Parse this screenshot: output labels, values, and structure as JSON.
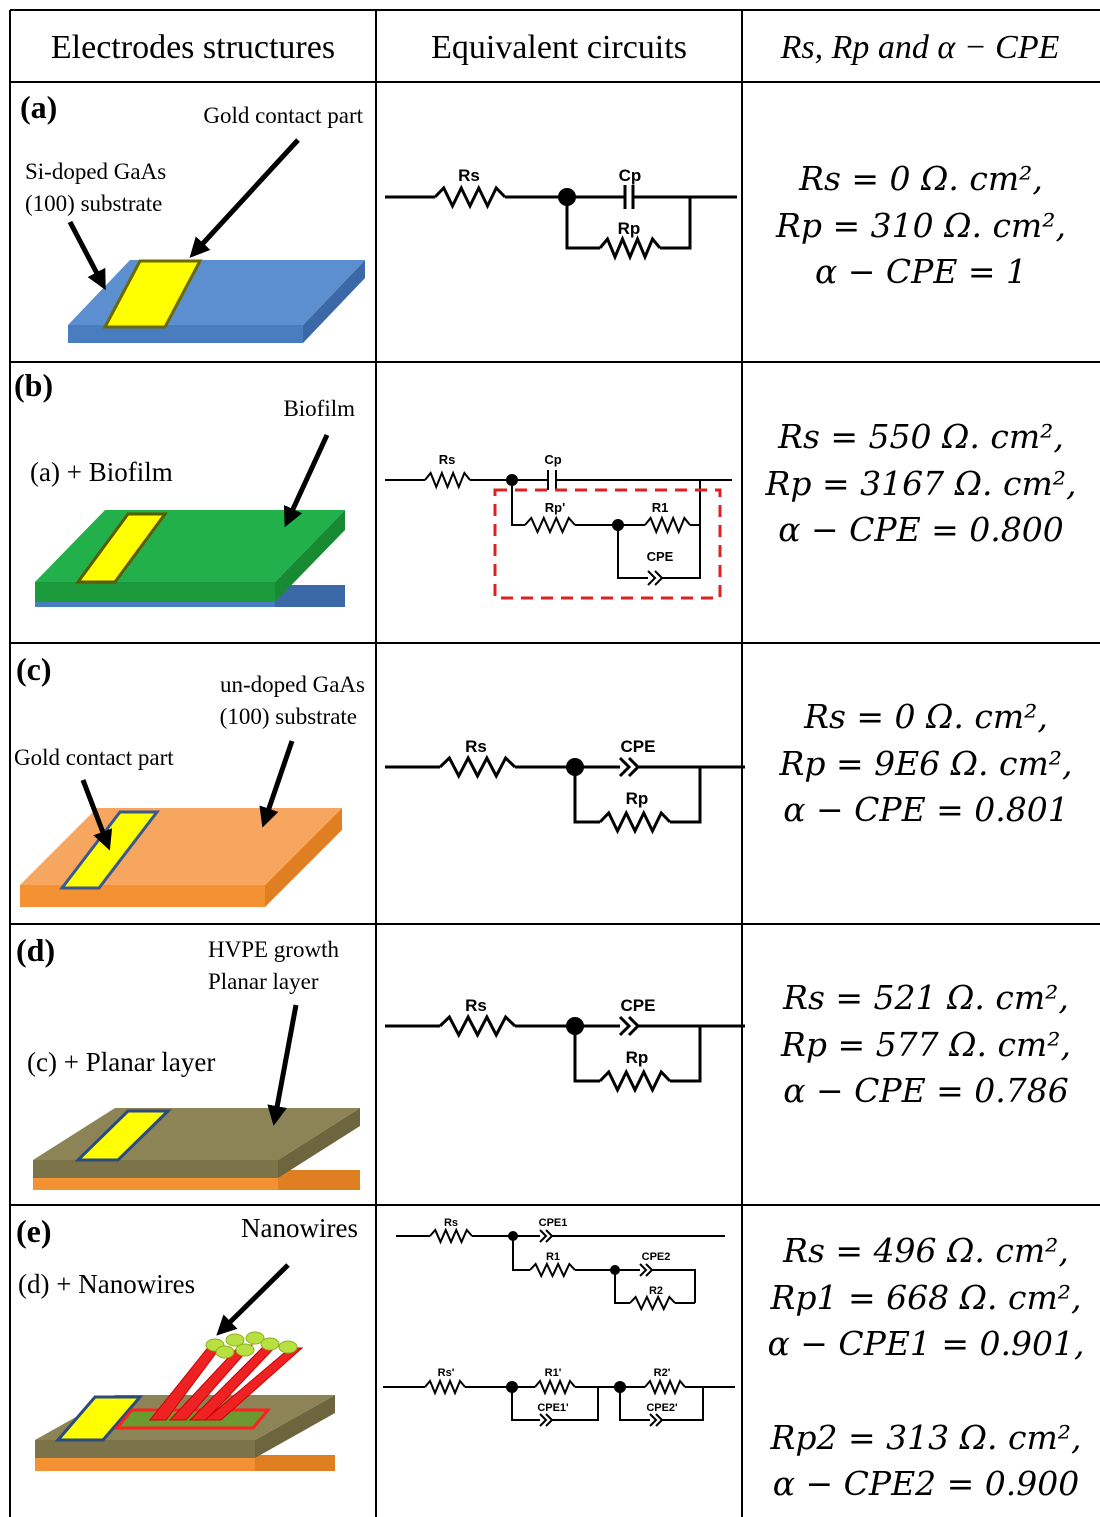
{
  "header": [
    "Electrodes structures",
    "Equivalent circuits",
    "Rs, Rp and α − CPE"
  ],
  "rows": [
    {
      "label": "(a)",
      "annotations": [
        "Gold contact part",
        "Si-doped GaAs",
        "(100) substrate"
      ],
      "circuit": [
        "Rs",
        "Cp",
        "Rp"
      ],
      "values": [
        "Rs = 0 Ω. cm²,",
        "Rp = 310 Ω. cm²,",
        "α − CPE = 1"
      ]
    },
    {
      "label": "(b)",
      "annotations": [
        "Biofilm",
        "(a) + Biofilm"
      ],
      "circuit": [
        "Rs",
        "Cp",
        "Rp'",
        "R1",
        "CPE"
      ],
      "values": [
        "Rs = 550 Ω. cm²,",
        "Rp = 3167 Ω. cm²,",
        "α − CPE = 0.800"
      ]
    },
    {
      "label": "(c)",
      "annotations": [
        "un-doped GaAs",
        "(100) substrate",
        "Gold contact part"
      ],
      "circuit": [
        "Rs",
        "CPE",
        "Rp"
      ],
      "values": [
        "Rs = 0 Ω. cm²,",
        "Rp = 9E6 Ω. cm²,",
        "α − CPE = 0.801"
      ]
    },
    {
      "label": "(d)",
      "annotations": [
        "HVPE growth",
        "Planar layer",
        "(c) + Planar layer"
      ],
      "circuit": [
        "Rs",
        "CPE",
        "Rp"
      ],
      "values": [
        "Rs = 521 Ω. cm²,",
        "Rp = 577 Ω. cm²,",
        "α − CPE = 0.786"
      ]
    },
    {
      "label": "(e)",
      "annotations": [
        "Nanowires",
        "(d) + Nanowires"
      ],
      "circuit": [
        "Rs",
        "CPE1",
        "R1",
        "CPE2",
        "R2",
        "Rs'",
        "R1'",
        "R2'",
        "CPE1'",
        "CPE2'"
      ],
      "values": [
        "Rs = 496 Ω. cm²,",
        "Rp1 = 668 Ω. cm²,",
        "α − CPE1 = 0.901,",
        "Rp2 = 313 Ω. cm²,",
        "α − CPE2 = 0.900"
      ]
    }
  ]
}
